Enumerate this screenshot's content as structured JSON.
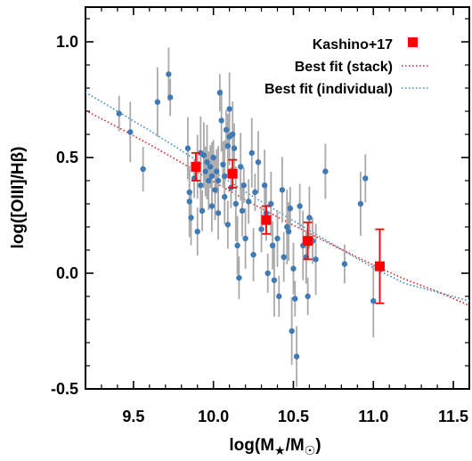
{
  "chart_data": {
    "type": "scatter",
    "title": "",
    "xlabel": "log(M★/M☉)",
    "ylabel": "log([OIII]/Hβ)",
    "xlim": [
      9.2,
      11.6
    ],
    "ylim": [
      -0.5,
      1.15
    ],
    "x_ticks": [
      "9.5",
      "10.0",
      "10.5",
      "11.0",
      "11.5"
    ],
    "y_ticks": [
      "1.0",
      "0.5",
      "0.0",
      "-0.5"
    ],
    "grid": false,
    "legend_position": "top-right",
    "colors": {
      "individual_points": "#3f7ab5",
      "individual_errorbars": "#aaaaaa",
      "kashino": "#ff0000",
      "fit_stack": "#e32020",
      "fit_individual": "#3a88c8"
    },
    "series": [
      {
        "name": "",
        "kind": "individual",
        "points": [
          [
            9.41,
            0.69
          ],
          [
            9.48,
            0.61
          ],
          [
            9.56,
            0.45
          ],
          [
            9.65,
            0.74
          ],
          [
            9.72,
            0.86
          ],
          [
            9.73,
            0.76
          ],
          [
            9.84,
            0.54
          ],
          [
            9.85,
            0.35
          ],
          [
            9.85,
            0.31
          ],
          [
            9.86,
            0.24
          ],
          [
            9.88,
            0.41
          ],
          [
            9.9,
            0.46
          ],
          [
            9.9,
            0.18
          ],
          [
            9.92,
            0.52
          ],
          [
            9.92,
            0.38
          ],
          [
            9.93,
            0.27
          ],
          [
            9.94,
            0.51
          ],
          [
            9.95,
            0.44
          ],
          [
            9.96,
            0.48
          ],
          [
            9.97,
            0.4
          ],
          [
            9.98,
            0.46
          ],
          [
            9.99,
            0.42
          ],
          [
            9.99,
            0.29
          ],
          [
            10.0,
            0.5
          ],
          [
            10.01,
            0.36
          ],
          [
            10.02,
            0.44
          ],
          [
            10.03,
            0.4
          ],
          [
            10.03,
            0.26
          ],
          [
            10.04,
            0.78
          ],
          [
            10.05,
            0.66
          ],
          [
            10.06,
            0.47
          ],
          [
            10.07,
            0.42
          ],
          [
            10.07,
            0.33
          ],
          [
            10.08,
            0.62
          ],
          [
            10.09,
            0.55
          ],
          [
            10.09,
            0.21
          ],
          [
            10.1,
            0.71
          ],
          [
            10.1,
            0.59
          ],
          [
            10.11,
            0.37
          ],
          [
            10.12,
            0.6
          ],
          [
            10.13,
            0.54
          ],
          [
            10.14,
            0.3
          ],
          [
            10.15,
            0.12
          ],
          [
            10.16,
            -0.02
          ],
          [
            10.17,
            0.46
          ],
          [
            10.18,
            0.27
          ],
          [
            10.19,
            0.38
          ],
          [
            10.2,
            0.15
          ],
          [
            10.22,
            0.31
          ],
          [
            10.24,
            0.52
          ],
          [
            10.25,
            0.08
          ],
          [
            10.26,
            0.35
          ],
          [
            10.28,
            0.48
          ],
          [
            10.3,
            0.19
          ],
          [
            10.32,
            0.38
          ],
          [
            10.33,
            0.26
          ],
          [
            10.34,
            0.0
          ],
          [
            10.36,
            0.3
          ],
          [
            10.37,
            0.12
          ],
          [
            10.38,
            -0.03
          ],
          [
            10.4,
            0.15
          ],
          [
            10.41,
            -0.1
          ],
          [
            10.43,
            0.36
          ],
          [
            10.44,
            0.07
          ],
          [
            10.46,
            0.2
          ],
          [
            10.47,
            0.18
          ],
          [
            10.48,
            0.28
          ],
          [
            10.49,
            -0.25
          ],
          [
            10.5,
            0.02
          ],
          [
            10.51,
            -0.11
          ],
          [
            10.52,
            -0.36
          ],
          [
            10.54,
            0.29
          ],
          [
            10.56,
            0.12
          ],
          [
            10.58,
            0.07
          ],
          [
            10.59,
            -0.1
          ],
          [
            10.6,
            0.24
          ],
          [
            10.62,
            0.14
          ],
          [
            10.64,
            0.06
          ],
          [
            10.7,
            0.44
          ],
          [
            10.82,
            0.04
          ],
          [
            10.92,
            0.3
          ],
          [
            10.95,
            0.41
          ],
          [
            11.0,
            -0.12
          ]
        ]
      },
      {
        "name": "Kashino+17",
        "kind": "stack",
        "points": [
          [
            9.89,
            0.46,
            0.06
          ],
          [
            10.12,
            0.43,
            0.06
          ],
          [
            10.33,
            0.23,
            0.06
          ],
          [
            10.59,
            0.14,
            0.08
          ],
          [
            11.04,
            0.03,
            0.16
          ]
        ]
      },
      {
        "name": "Best fit (stack)",
        "kind": "fit",
        "curve": [
          [
            9.2,
            0.703
          ],
          [
            9.4,
            0.632
          ],
          [
            9.6,
            0.557
          ],
          [
            9.8,
            0.478
          ],
          [
            10.0,
            0.396
          ],
          [
            10.2,
            0.317
          ],
          [
            10.4,
            0.243
          ],
          [
            10.6,
            0.172
          ],
          [
            10.8,
            0.103
          ],
          [
            11.0,
            0.035
          ],
          [
            11.2,
            -0.027
          ],
          [
            11.4,
            -0.079
          ],
          [
            11.6,
            -0.14
          ]
        ]
      },
      {
        "name": "Best fit (individual)",
        "kind": "fit",
        "curve": [
          [
            9.2,
            0.782
          ],
          [
            9.4,
            0.7
          ],
          [
            9.6,
            0.617
          ],
          [
            9.8,
            0.53
          ],
          [
            10.0,
            0.44
          ],
          [
            10.2,
            0.352
          ],
          [
            10.4,
            0.268
          ],
          [
            10.6,
            0.185
          ],
          [
            10.8,
            0.103
          ],
          [
            11.0,
            0.023
          ],
          [
            11.2,
            -0.045
          ],
          [
            11.4,
            -0.082
          ],
          [
            11.6,
            -0.12
          ]
        ]
      }
    ]
  }
}
